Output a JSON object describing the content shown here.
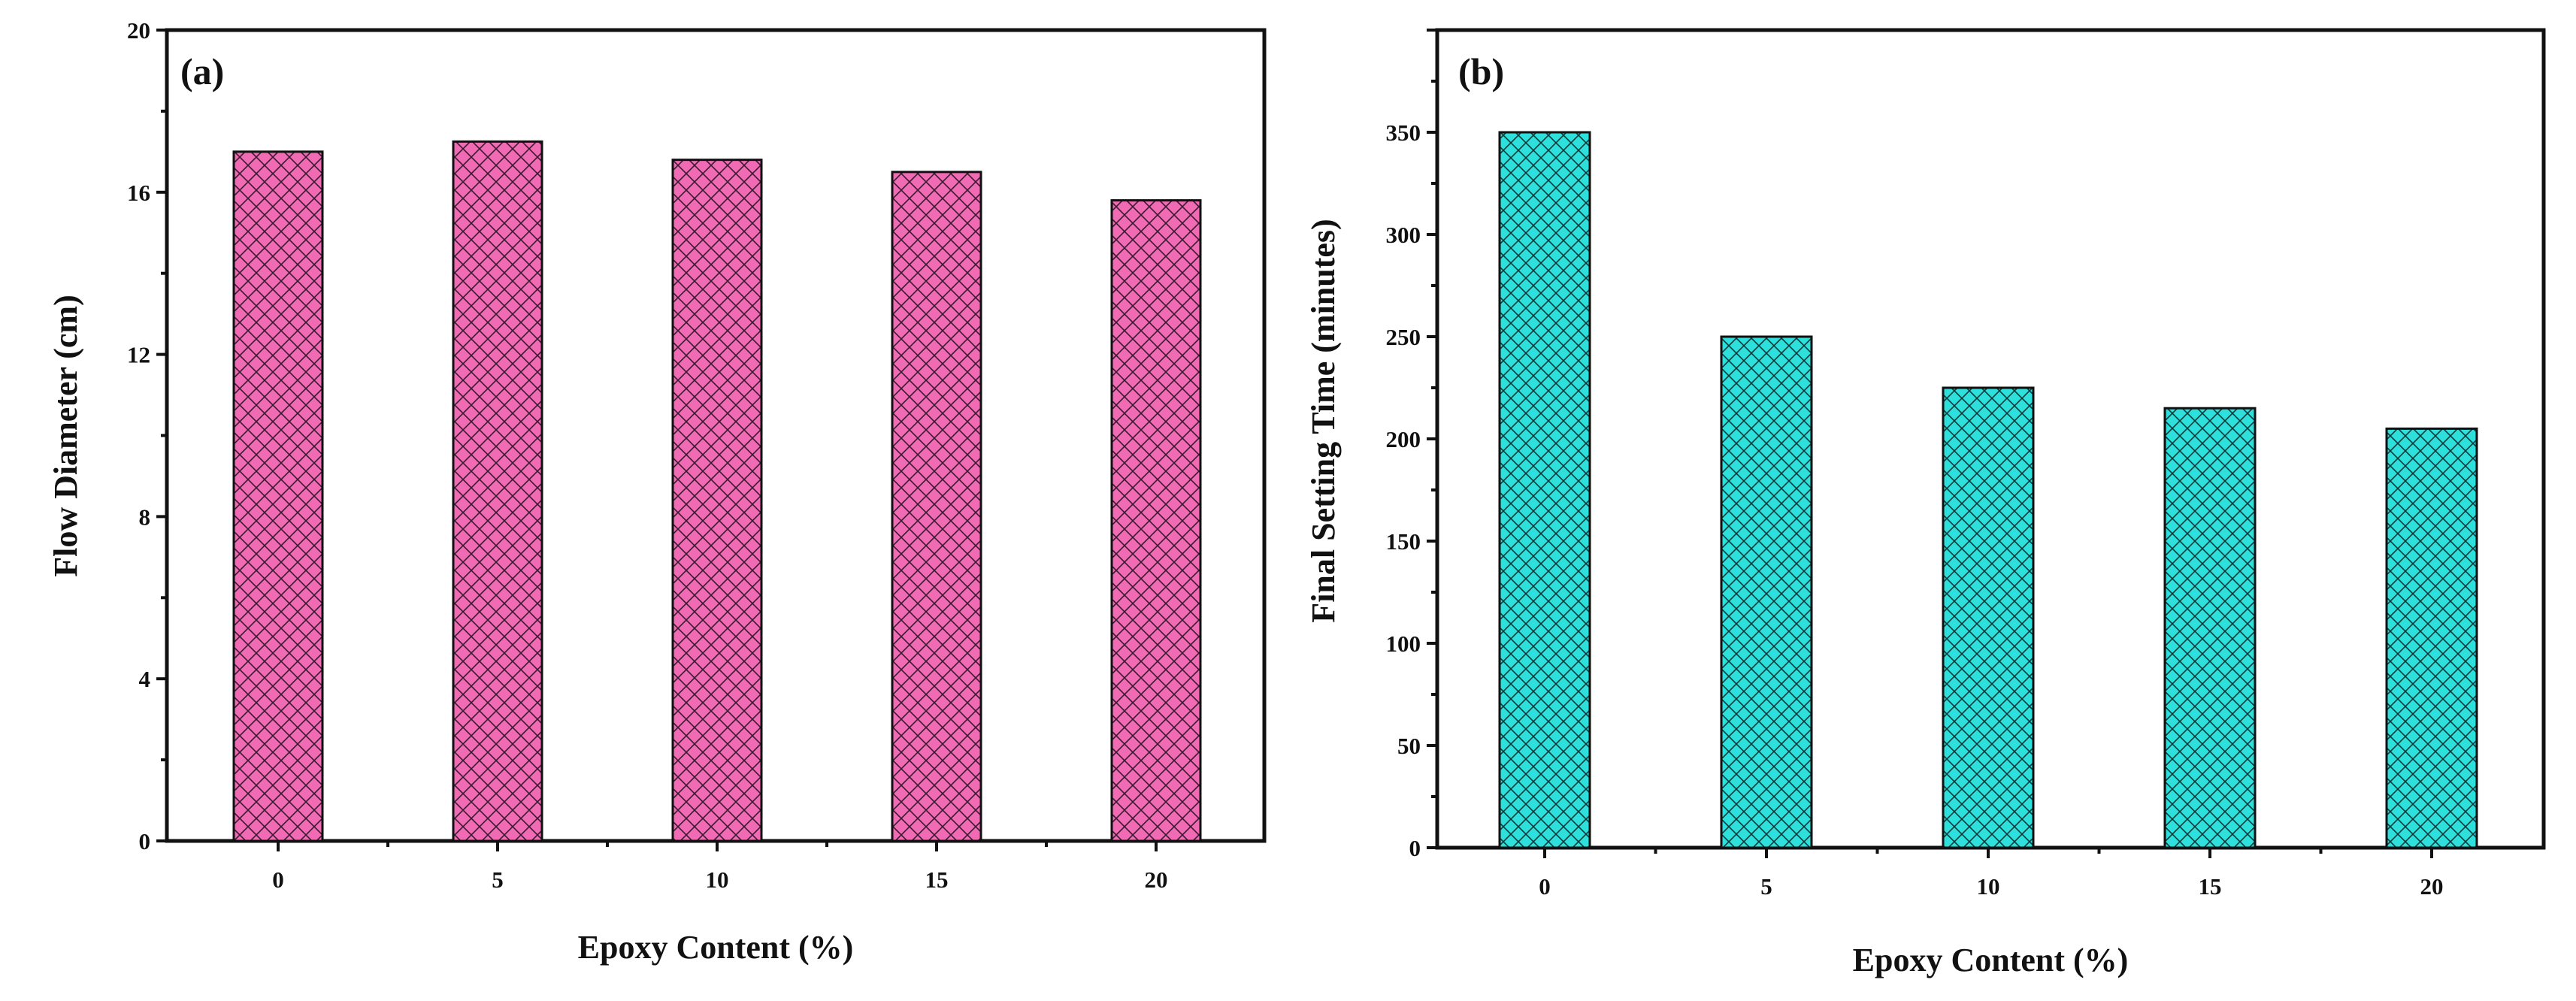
{
  "chart_data": [
    {
      "type": "bar",
      "panel_label": "(a)",
      "categories": [
        "0",
        "5",
        "10",
        "15",
        "20"
      ],
      "values": [
        17.0,
        17.25,
        16.8,
        16.5,
        15.8
      ],
      "xlabel": "Epoxy Content (%)",
      "ylabel": "Flow Diameter (cm)",
      "ylim": [
        0,
        20
      ],
      "yticks": [
        0,
        4,
        8,
        12,
        16,
        20
      ],
      "bar_color": "#f06ab4",
      "hatch": "crosshatch",
      "grid": false
    },
    {
      "type": "bar",
      "panel_label": "(b)",
      "categories": [
        "0",
        "5",
        "10",
        "15",
        "20"
      ],
      "values": [
        350,
        250,
        225,
        215,
        205
      ],
      "xlabel": "Epoxy Content (%)",
      "ylabel": "Final Setting Time (minutes)",
      "ylim": [
        0,
        400
      ],
      "yticks": [
        0,
        50,
        100,
        150,
        200,
        250,
        300,
        350
      ],
      "bar_color": "#2ee0dc",
      "hatch": "crosshatch",
      "grid": false
    }
  ]
}
